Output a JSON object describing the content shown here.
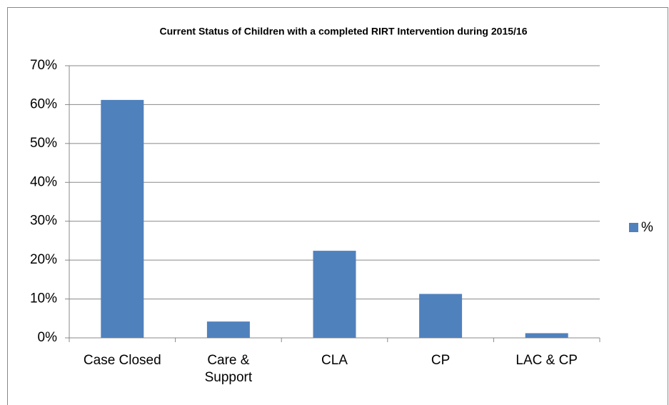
{
  "chart_data": {
    "type": "bar",
    "title": "Current Status of Children with a completed RIRT Intervention during 2015/16",
    "categories": [
      "Case Closed",
      "Care & Support",
      "CLA",
      "CP",
      "LAC & CP"
    ],
    "series": [
      {
        "name": "%",
        "color": "#4f81bd",
        "values": [
          61.2,
          4.2,
          22.4,
          11.3,
          1.2
        ]
      }
    ],
    "ylim": [
      0,
      70
    ],
    "yticks": [
      {
        "value": 0,
        "label": "0%"
      },
      {
        "value": 10,
        "label": "10%"
      },
      {
        "value": 20,
        "label": "20%"
      },
      {
        "value": 30,
        "label": "30%"
      },
      {
        "value": 40,
        "label": "40%"
      },
      {
        "value": 50,
        "label": "50%"
      },
      {
        "value": 60,
        "label": "60%"
      },
      {
        "value": 70,
        "label": "70%"
      }
    ],
    "grid": true,
    "legend": "right"
  }
}
